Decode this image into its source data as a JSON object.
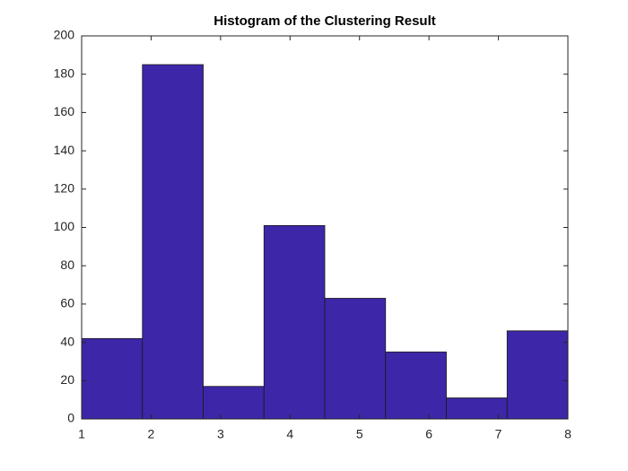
{
  "chart_data": {
    "type": "histogram",
    "title": "Histogram of the Clustering Result",
    "bins": [
      1,
      1.875,
      2.75,
      3.625,
      4.5,
      5.375,
      6.25,
      7.125,
      8
    ],
    "values": [
      42,
      185,
      17,
      101,
      63,
      35,
      11,
      46
    ],
    "color": "#3e26a8",
    "xlim": [
      1,
      8
    ],
    "xticks": [
      1,
      2,
      3,
      4,
      5,
      6,
      7,
      8
    ],
    "ylim": [
      0,
      200
    ],
    "yticks": [
      0,
      20,
      40,
      60,
      80,
      100,
      120,
      140,
      160,
      180,
      200
    ],
    "grid": false
  }
}
